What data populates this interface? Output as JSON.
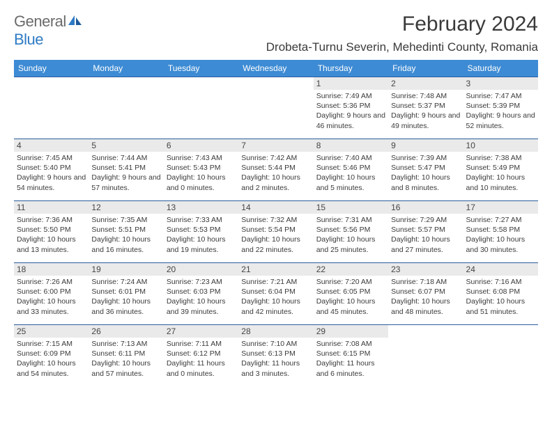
{
  "logo": {
    "word1": "General",
    "word2": "Blue"
  },
  "title": "February 2024",
  "location": "Drobeta-Turnu Severin, Mehedinti County, Romania",
  "headers": [
    "Sunday",
    "Monday",
    "Tuesday",
    "Wednesday",
    "Thursday",
    "Friday",
    "Saturday"
  ],
  "colors": {
    "header_bg": "#3d8bd4",
    "header_text": "#ffffff",
    "border": "#2a5d9e",
    "daynum_bg": "#eaeaea",
    "text": "#3a3a3a",
    "logo_gray": "#6b6b6b",
    "logo_blue": "#2e7bc4"
  },
  "weeks": [
    [
      {
        "day": "",
        "sunrise": "",
        "sunset": "",
        "daylight": ""
      },
      {
        "day": "",
        "sunrise": "",
        "sunset": "",
        "daylight": ""
      },
      {
        "day": "",
        "sunrise": "",
        "sunset": "",
        "daylight": ""
      },
      {
        "day": "",
        "sunrise": "",
        "sunset": "",
        "daylight": ""
      },
      {
        "day": "1",
        "sunrise": "Sunrise: 7:49 AM",
        "sunset": "Sunset: 5:36 PM",
        "daylight": "Daylight: 9 hours and 46 minutes."
      },
      {
        "day": "2",
        "sunrise": "Sunrise: 7:48 AM",
        "sunset": "Sunset: 5:37 PM",
        "daylight": "Daylight: 9 hours and 49 minutes."
      },
      {
        "day": "3",
        "sunrise": "Sunrise: 7:47 AM",
        "sunset": "Sunset: 5:39 PM",
        "daylight": "Daylight: 9 hours and 52 minutes."
      }
    ],
    [
      {
        "day": "4",
        "sunrise": "Sunrise: 7:45 AM",
        "sunset": "Sunset: 5:40 PM",
        "daylight": "Daylight: 9 hours and 54 minutes."
      },
      {
        "day": "5",
        "sunrise": "Sunrise: 7:44 AM",
        "sunset": "Sunset: 5:41 PM",
        "daylight": "Daylight: 9 hours and 57 minutes."
      },
      {
        "day": "6",
        "sunrise": "Sunrise: 7:43 AM",
        "sunset": "Sunset: 5:43 PM",
        "daylight": "Daylight: 10 hours and 0 minutes."
      },
      {
        "day": "7",
        "sunrise": "Sunrise: 7:42 AM",
        "sunset": "Sunset: 5:44 PM",
        "daylight": "Daylight: 10 hours and 2 minutes."
      },
      {
        "day": "8",
        "sunrise": "Sunrise: 7:40 AM",
        "sunset": "Sunset: 5:46 PM",
        "daylight": "Daylight: 10 hours and 5 minutes."
      },
      {
        "day": "9",
        "sunrise": "Sunrise: 7:39 AM",
        "sunset": "Sunset: 5:47 PM",
        "daylight": "Daylight: 10 hours and 8 minutes."
      },
      {
        "day": "10",
        "sunrise": "Sunrise: 7:38 AM",
        "sunset": "Sunset: 5:49 PM",
        "daylight": "Daylight: 10 hours and 10 minutes."
      }
    ],
    [
      {
        "day": "11",
        "sunrise": "Sunrise: 7:36 AM",
        "sunset": "Sunset: 5:50 PM",
        "daylight": "Daylight: 10 hours and 13 minutes."
      },
      {
        "day": "12",
        "sunrise": "Sunrise: 7:35 AM",
        "sunset": "Sunset: 5:51 PM",
        "daylight": "Daylight: 10 hours and 16 minutes."
      },
      {
        "day": "13",
        "sunrise": "Sunrise: 7:33 AM",
        "sunset": "Sunset: 5:53 PM",
        "daylight": "Daylight: 10 hours and 19 minutes."
      },
      {
        "day": "14",
        "sunrise": "Sunrise: 7:32 AM",
        "sunset": "Sunset: 5:54 PM",
        "daylight": "Daylight: 10 hours and 22 minutes."
      },
      {
        "day": "15",
        "sunrise": "Sunrise: 7:31 AM",
        "sunset": "Sunset: 5:56 PM",
        "daylight": "Daylight: 10 hours and 25 minutes."
      },
      {
        "day": "16",
        "sunrise": "Sunrise: 7:29 AM",
        "sunset": "Sunset: 5:57 PM",
        "daylight": "Daylight: 10 hours and 27 minutes."
      },
      {
        "day": "17",
        "sunrise": "Sunrise: 7:27 AM",
        "sunset": "Sunset: 5:58 PM",
        "daylight": "Daylight: 10 hours and 30 minutes."
      }
    ],
    [
      {
        "day": "18",
        "sunrise": "Sunrise: 7:26 AM",
        "sunset": "Sunset: 6:00 PM",
        "daylight": "Daylight: 10 hours and 33 minutes."
      },
      {
        "day": "19",
        "sunrise": "Sunrise: 7:24 AM",
        "sunset": "Sunset: 6:01 PM",
        "daylight": "Daylight: 10 hours and 36 minutes."
      },
      {
        "day": "20",
        "sunrise": "Sunrise: 7:23 AM",
        "sunset": "Sunset: 6:03 PM",
        "daylight": "Daylight: 10 hours and 39 minutes."
      },
      {
        "day": "21",
        "sunrise": "Sunrise: 7:21 AM",
        "sunset": "Sunset: 6:04 PM",
        "daylight": "Daylight: 10 hours and 42 minutes."
      },
      {
        "day": "22",
        "sunrise": "Sunrise: 7:20 AM",
        "sunset": "Sunset: 6:05 PM",
        "daylight": "Daylight: 10 hours and 45 minutes."
      },
      {
        "day": "23",
        "sunrise": "Sunrise: 7:18 AM",
        "sunset": "Sunset: 6:07 PM",
        "daylight": "Daylight: 10 hours and 48 minutes."
      },
      {
        "day": "24",
        "sunrise": "Sunrise: 7:16 AM",
        "sunset": "Sunset: 6:08 PM",
        "daylight": "Daylight: 10 hours and 51 minutes."
      }
    ],
    [
      {
        "day": "25",
        "sunrise": "Sunrise: 7:15 AM",
        "sunset": "Sunset: 6:09 PM",
        "daylight": "Daylight: 10 hours and 54 minutes."
      },
      {
        "day": "26",
        "sunrise": "Sunrise: 7:13 AM",
        "sunset": "Sunset: 6:11 PM",
        "daylight": "Daylight: 10 hours and 57 minutes."
      },
      {
        "day": "27",
        "sunrise": "Sunrise: 7:11 AM",
        "sunset": "Sunset: 6:12 PM",
        "daylight": "Daylight: 11 hours and 0 minutes."
      },
      {
        "day": "28",
        "sunrise": "Sunrise: 7:10 AM",
        "sunset": "Sunset: 6:13 PM",
        "daylight": "Daylight: 11 hours and 3 minutes."
      },
      {
        "day": "29",
        "sunrise": "Sunrise: 7:08 AM",
        "sunset": "Sunset: 6:15 PM",
        "daylight": "Daylight: 11 hours and 6 minutes."
      },
      {
        "day": "",
        "sunrise": "",
        "sunset": "",
        "daylight": ""
      },
      {
        "day": "",
        "sunrise": "",
        "sunset": "",
        "daylight": ""
      }
    ]
  ]
}
